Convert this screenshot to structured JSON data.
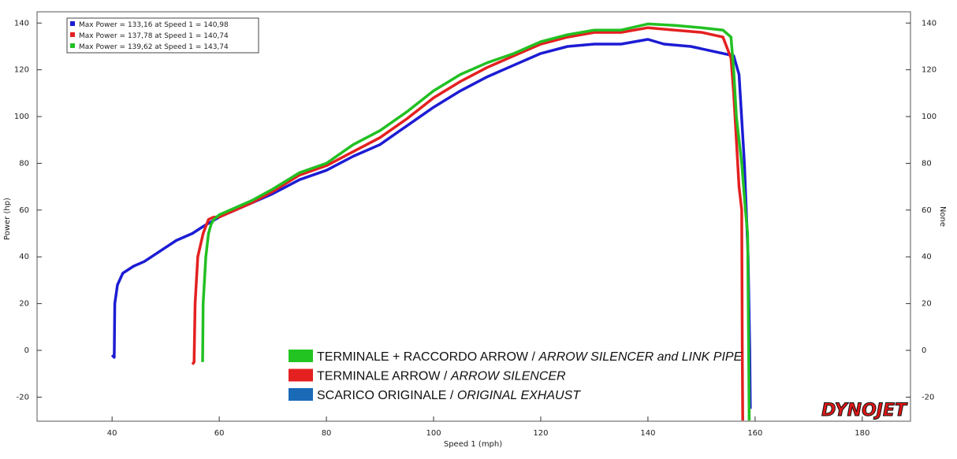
{
  "chart_data": {
    "type": "line",
    "x_label": "Speed 1 (mph)",
    "y_label": "Power (hp)",
    "y2_label": "None",
    "logo": "DYNOJET",
    "xlim": [
      26,
      189
    ],
    "ylim": [
      -30.3,
      144.8
    ],
    "y2lim": [
      -30.3,
      144.8
    ],
    "xticks": [
      40,
      60,
      80,
      100,
      120,
      140,
      160,
      180
    ],
    "yticks": [
      -20,
      0,
      20,
      40,
      60,
      80,
      100,
      120,
      140
    ],
    "y2ticks": [
      -20,
      0,
      20,
      40,
      60,
      80,
      100,
      120,
      140
    ],
    "series": [
      {
        "name": "SCARICO ORIGINALE /",
        "name_en": "ORIGINAL EXHAUST",
        "color": "#1c1cd4",
        "swatch_color": "#1a6ab8",
        "max_label": "Max Power = 133,16 at Speed 1 = 140,98",
        "x": [
          40,
          40.4,
          40.5,
          41,
          42,
          44,
          46,
          48,
          50,
          52,
          55,
          57,
          60,
          63,
          66,
          70,
          75,
          80,
          85,
          90,
          95,
          100,
          105,
          110,
          115,
          120,
          125,
          130,
          135,
          140,
          143,
          148,
          152,
          156,
          157,
          158,
          158.7,
          159,
          159.1
        ],
        "values": [
          -2,
          -3,
          20,
          28,
          33,
          36,
          38,
          41,
          44,
          47,
          50,
          53,
          57,
          60,
          63,
          67,
          73,
          77,
          83,
          88,
          96,
          104,
          111,
          117,
          122,
          127,
          130,
          131,
          131,
          133,
          131,
          130,
          128,
          126,
          118,
          80,
          40,
          0,
          -25
        ]
      },
      {
        "name": "TERMINALE ARROW /",
        "name_en": "ARROW SILENCER",
        "color": "#e42020",
        "swatch_color": "#e42020",
        "max_label": "Max Power = 137,78 at Speed 1 = 140,74",
        "x": [
          55,
          55.3,
          55.5,
          56,
          57,
          58,
          59,
          60,
          63,
          66,
          70,
          75,
          80,
          85,
          90,
          95,
          100,
          105,
          110,
          115,
          120,
          125,
          130,
          135,
          140,
          145,
          150,
          154,
          155.5,
          156,
          156.5,
          157,
          157.5,
          157.6,
          157.7
        ],
        "values": [
          -6,
          -5,
          20,
          40,
          50,
          56,
          57,
          57,
          60,
          63,
          68,
          75,
          79,
          85,
          91,
          99,
          108,
          115,
          121,
          126,
          131,
          134,
          136,
          136,
          138,
          137,
          136,
          134,
          125,
          110,
          90,
          70,
          60,
          0,
          -30
        ]
      },
      {
        "name": "TERMINALE + RACCORDO ARROW /",
        "name_en": "ARROW SILENCER and LINK PIPE",
        "color": "#22c022",
        "swatch_color": "#22c422",
        "max_label": "Max Power = 139,62 at Speed 1 = 143,74",
        "x": [
          56.9,
          57,
          57.5,
          58,
          58.5,
          59,
          60,
          63,
          66,
          70,
          75,
          80,
          85,
          90,
          95,
          100,
          105,
          110,
          115,
          120,
          125,
          130,
          135,
          140,
          145,
          150,
          154,
          155.5,
          156,
          156.5,
          157.5,
          158.2,
          158.6,
          158.8,
          158.9
        ],
        "values": [
          -5,
          20,
          40,
          50,
          54,
          56,
          58,
          61,
          64,
          69,
          76,
          80,
          88,
          94,
          102,
          111,
          118,
          123,
          127,
          132,
          135,
          137,
          137,
          139.6,
          139,
          138,
          137,
          134,
          120,
          100,
          80,
          60,
          50,
          0,
          -30
        ]
      }
    ]
  }
}
